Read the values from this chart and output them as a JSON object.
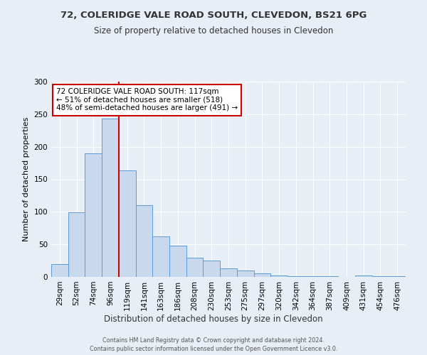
{
  "title1": "72, COLERIDGE VALE ROAD SOUTH, CLEVEDON, BS21 6PG",
  "title2": "Size of property relative to detached houses in Clevedon",
  "xlabel": "Distribution of detached houses by size in Clevedon",
  "ylabel": "Number of detached properties",
  "bin_labels": [
    "29sqm",
    "52sqm",
    "74sqm",
    "96sqm",
    "119sqm",
    "141sqm",
    "163sqm",
    "186sqm",
    "208sqm",
    "230sqm",
    "253sqm",
    "275sqm",
    "297sqm",
    "320sqm",
    "342sqm",
    "364sqm",
    "387sqm",
    "409sqm",
    "431sqm",
    "454sqm",
    "476sqm"
  ],
  "bar_heights": [
    20,
    99,
    190,
    243,
    164,
    110,
    62,
    48,
    30,
    25,
    13,
    10,
    5,
    2,
    1,
    1,
    1,
    0,
    2,
    1,
    1
  ],
  "bar_color": "#c9d9ed",
  "bar_edge_color": "#5b9bd5",
  "vline_x": 4,
  "vline_color": "#cc0000",
  "annotation_line1": "72 COLERIDGE VALE ROAD SOUTH: 117sqm",
  "annotation_line2": "← 51% of detached houses are smaller (518)",
  "annotation_line3": "48% of semi-detached houses are larger (491) →",
  "annotation_box_color": "#ffffff",
  "annotation_box_edge": "#cc0000",
  "ylim": [
    0,
    300
  ],
  "yticks": [
    0,
    50,
    100,
    150,
    200,
    250,
    300
  ],
  "bg_color": "#e8eef5",
  "footer1": "Contains HM Land Registry data © Crown copyright and database right 2024.",
  "footer2": "Contains public sector information licensed under the Open Government Licence v3.0."
}
